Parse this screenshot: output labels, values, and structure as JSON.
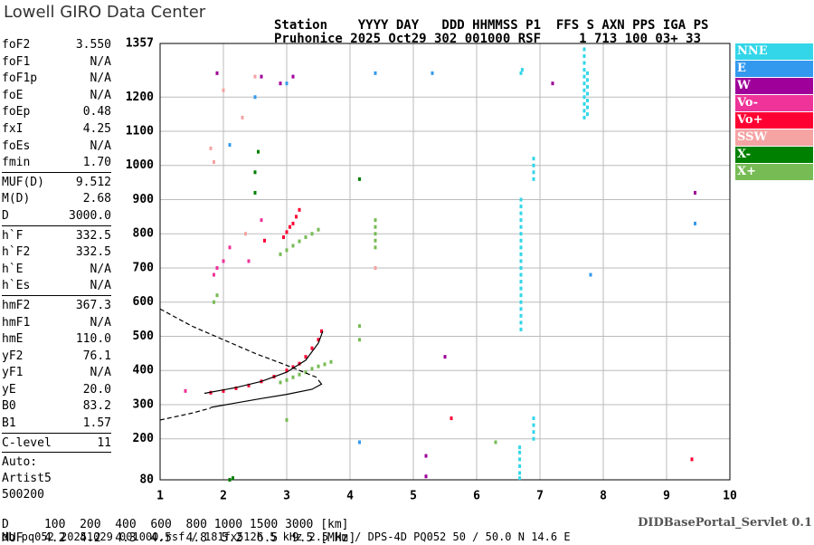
{
  "header": {
    "logo": "Lowell GIRO Data Center",
    "lines": [
      "Station    YYYY DAY   DDD HHMMSS P1  FFS S AXN PPS IGA PS",
      "Pruhonice 2025 Oct29 302 001000 RSF     1 713 100 03+ 33"
    ]
  },
  "parameters": [
    [
      {
        "name": "foF2",
        "value": "3.550"
      },
      {
        "name": "foF1",
        "value": "N/A"
      },
      {
        "name": "foF1p",
        "value": "N/A"
      },
      {
        "name": "foE",
        "value": "N/A"
      },
      {
        "name": "foEp",
        "value": "0.48"
      },
      {
        "name": "fxI",
        "value": "4.25"
      },
      {
        "name": "foEs",
        "value": "N/A"
      },
      {
        "name": "fmin",
        "value": "1.70"
      }
    ],
    [
      {
        "name": "MUF(D)",
        "value": "9.512"
      },
      {
        "name": "M(D)",
        "value": "2.68"
      },
      {
        "name": "D",
        "value": "3000.0"
      }
    ],
    [
      {
        "name": "h`F",
        "value": "332.5"
      },
      {
        "name": "h`F2",
        "value": "332.5"
      },
      {
        "name": "h`E",
        "value": "N/A"
      },
      {
        "name": "h`Es",
        "value": "N/A"
      }
    ],
    [
      {
        "name": "hmF2",
        "value": "367.3"
      },
      {
        "name": "hmF1",
        "value": "N/A"
      },
      {
        "name": "hmE",
        "value": "110.0"
      },
      {
        "name": "yF2",
        "value": "76.1"
      },
      {
        "name": "yF1",
        "value": "N/A"
      },
      {
        "name": "yE",
        "value": "20.0"
      },
      {
        "name": "B0",
        "value": "83.2"
      },
      {
        "name": "B1",
        "value": "1.57"
      }
    ],
    [
      {
        "name": "C-level",
        "value": "11"
      }
    ]
  ],
  "auto": [
    "Auto:",
    "Artist5",
    "500200"
  ],
  "muf_table": [
    "D     100  200  400  600  800 1000 1500 3000 [km]",
    "MUF   4.2  4.2  4.3  4.5  4.8  5.2  6.5  9.5 [MHz]"
  ],
  "footer": "db pq052 20251029 001000.rsf / 181fx512h 5 kHz 2.5 km / DPS-4D PQ052 50 / 50.0 N 14.6 E",
  "servlet": "DIDBasePortal_Servlet 0.1",
  "chart_data": {
    "type": "scatter",
    "xlim": [
      1,
      10
    ],
    "xticks": [
      1,
      2,
      3,
      4,
      5,
      6,
      7,
      8,
      9,
      10
    ],
    "ylim": [
      80,
      1357
    ],
    "yticks": [
      80,
      200,
      300,
      400,
      500,
      600,
      700,
      800,
      900,
      1000,
      1100,
      1200,
      1357
    ],
    "grid": true,
    "series": [
      {
        "name": "NNE",
        "color": "#33d6e8",
        "x": [
          6.7,
          6.7,
          6.7,
          6.7,
          6.7,
          6.7,
          6.7,
          6.7,
          6.7,
          6.7,
          6.7,
          6.7,
          6.7,
          6.7,
          6.7,
          6.7,
          6.7,
          6.7,
          6.7,
          6.7,
          6.9,
          6.9,
          6.9,
          6.9,
          6.9,
          6.9,
          6.9,
          6.9,
          7.7,
          7.7,
          7.7,
          7.7,
          7.7,
          7.7,
          7.7,
          7.7,
          7.7,
          7.7,
          7.7,
          7.75,
          7.75,
          7.75,
          7.75,
          7.75,
          7.75,
          7.75,
          6.68,
          6.68,
          6.68,
          6.68,
          6.68,
          6.68,
          6.7,
          6.72
        ],
        "values": [
          520,
          540,
          560,
          580,
          600,
          620,
          640,
          660,
          680,
          700,
          720,
          740,
          760,
          780,
          800,
          820,
          840,
          860,
          880,
          900,
          960,
          980,
          1000,
          1020,
          200,
          220,
          240,
          260,
          1140,
          1160,
          1180,
          1200,
          1220,
          1240,
          1260,
          1280,
          1300,
          1320,
          1340,
          1150,
          1170,
          1190,
          1210,
          1230,
          1250,
          1270,
          85,
          100,
          120,
          140,
          160,
          175,
          1270,
          1280
        ]
      },
      {
        "name": "E",
        "color": "#3399ee",
        "x": [
          2.1,
          2.5,
          3.0,
          4.15,
          5.3,
          4.4,
          7.8,
          9.45
        ],
        "values": [
          1060,
          1200,
          1240,
          190,
          1270,
          1270,
          680,
          830
        ]
      },
      {
        "name": "W",
        "color": "#9e0099",
        "x": [
          1.9,
          2.6,
          2.9,
          3.1,
          5.2,
          5.2,
          5.5,
          7.2,
          9.45
        ],
        "values": [
          1270,
          1260,
          1240,
          1260,
          90,
          150,
          440,
          1240,
          920
        ]
      },
      {
        "name": "Vo-",
        "color": "#ee3399",
        "x": [
          1.85,
          1.9,
          2.0,
          2.1,
          2.4,
          2.6,
          1.4
        ],
        "values": [
          680,
          700,
          720,
          760,
          720,
          840,
          340
        ]
      },
      {
        "name": "Vo+",
        "color": "#ff0033",
        "x": [
          1.8,
          2.0,
          2.2,
          2.4,
          2.6,
          2.8,
          3.0,
          3.1,
          3.2,
          3.3,
          3.4,
          3.5,
          3.55,
          2.65,
          2.95,
          3.0,
          3.05,
          3.1,
          3.15,
          3.2,
          5.6,
          9.4
        ],
        "values": [
          335,
          340,
          348,
          356,
          368,
          382,
          400,
          410,
          420,
          440,
          465,
          490,
          515,
          780,
          790,
          805,
          820,
          830,
          850,
          870,
          260,
          140
        ]
      },
      {
        "name": "SSW",
        "color": "#f5a3a3",
        "x": [
          1.8,
          2.0,
          2.3,
          2.5,
          1.85,
          2.35,
          4.4
        ],
        "values": [
          1050,
          1220,
          1140,
          1260,
          1010,
          800,
          700
        ]
      },
      {
        "name": "X-",
        "color": "#008000",
        "x": [
          2.5,
          2.5,
          2.55,
          4.15,
          2.1,
          2.15
        ],
        "values": [
          920,
          980,
          1040,
          960,
          80,
          85
        ]
      },
      {
        "name": "X+",
        "color": "#77bb55",
        "x": [
          2.9,
          3.0,
          3.1,
          3.2,
          3.3,
          3.4,
          3.5,
          3.6,
          3.7,
          2.9,
          3.0,
          3.1,
          3.2,
          3.3,
          3.4,
          3.5,
          4.4,
          4.4,
          4.4,
          4.4,
          4.4,
          4.15,
          4.15,
          3.0,
          6.3,
          1.9,
          1.85
        ],
        "values": [
          365,
          372,
          380,
          388,
          395,
          405,
          412,
          418,
          425,
          740,
          752,
          765,
          778,
          790,
          800,
          812,
          760,
          780,
          800,
          820,
          840,
          490,
          530,
          255,
          190,
          620,
          600
        ]
      }
    ],
    "lines": [
      {
        "color": "#000000",
        "dashed": true,
        "x": [
          1,
          1.5,
          2,
          2.5,
          3,
          3.5
        ],
        "values": [
          580,
          530,
          490,
          450,
          415,
          378
        ]
      },
      {
        "color": "#000000",
        "dashed": true,
        "x": [
          1,
          1.5,
          1.8
        ],
        "values": [
          255,
          275,
          290
        ]
      },
      {
        "color": "#000000",
        "dashed": false,
        "x": [
          1.8,
          2.2,
          2.6,
          3.0,
          3.4,
          3.55,
          3.5
        ],
        "values": [
          292,
          305,
          318,
          330,
          345,
          360,
          372
        ]
      },
      {
        "color": "#000000",
        "dashed": false,
        "x": [
          1.7,
          2.2,
          2.6,
          3.0,
          3.3,
          3.5,
          3.57
        ],
        "values": [
          333,
          350,
          368,
          395,
          430,
          480,
          515
        ]
      }
    ]
  }
}
